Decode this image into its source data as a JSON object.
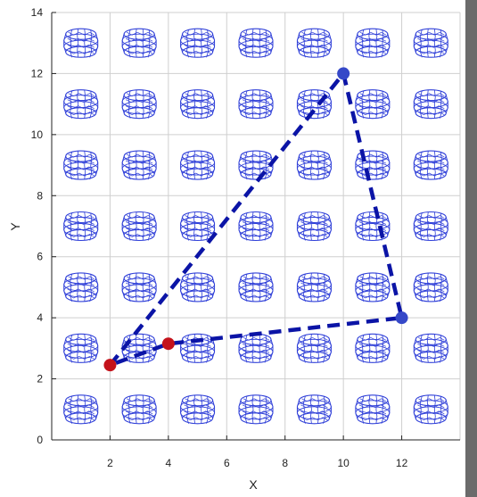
{
  "chart_data": {
    "type": "line",
    "title": "",
    "xlabel": "X",
    "ylabel": "Y",
    "xlim": [
      0,
      14
    ],
    "ylim": [
      0,
      14
    ],
    "x_ticks": [
      2,
      4,
      6,
      8,
      10,
      12
    ],
    "y_ticks": [
      0,
      2,
      4,
      6,
      8,
      10,
      12,
      14
    ],
    "grid": true,
    "background_motif": "nanotube-ring-icon",
    "background_grid": {
      "rows": 7,
      "cols": 7
    },
    "colors": {
      "path": "#0b14a6",
      "red_point": "#c4121b",
      "blue_point": "#3548c8",
      "motif": "#2f3fd8",
      "grid": "#cfcfcf"
    },
    "series": [
      {
        "style": "dashed",
        "x": [
          2,
          10,
          12,
          4,
          2
        ],
        "y": [
          2.45,
          12.0,
          4.0,
          3.15,
          2.45
        ]
      }
    ],
    "points": [
      {
        "x": 2,
        "y": 2.45,
        "color": "red"
      },
      {
        "x": 4,
        "y": 3.15,
        "color": "red"
      },
      {
        "x": 10,
        "y": 12.0,
        "color": "blue"
      },
      {
        "x": 12,
        "y": 4.0,
        "color": "blue"
      }
    ]
  }
}
